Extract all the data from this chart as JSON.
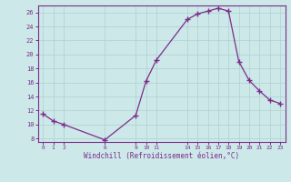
{
  "x": [
    0,
    1,
    2,
    6,
    9,
    10,
    11,
    14,
    15,
    16,
    17,
    18,
    19,
    20,
    21,
    22,
    23
  ],
  "y": [
    11.5,
    10.5,
    10.0,
    7.8,
    11.3,
    16.2,
    19.2,
    25.0,
    25.8,
    26.2,
    26.6,
    26.2,
    19.0,
    16.3,
    14.8,
    13.5,
    13.0
  ],
  "line_color": "#7b2d8b",
  "marker": "+",
  "marker_size": 4,
  "bg_color": "#cce8e8",
  "grid_color": "#b0d0d0",
  "xlabel": "Windchill (Refroidissement éolien,°C)",
  "xticks": [
    0,
    1,
    2,
    6,
    9,
    10,
    11,
    14,
    15,
    16,
    17,
    18,
    19,
    20,
    21,
    22,
    23
  ],
  "yticks": [
    8,
    10,
    12,
    14,
    16,
    18,
    20,
    22,
    24,
    26
  ],
  "ylim": [
    7.5,
    27.0
  ],
  "xlim": [
    -0.5,
    23.5
  ],
  "label_color": "#7b2d8b",
  "tick_color": "#7b2d8b",
  "spine_color": "#7b2d8b"
}
